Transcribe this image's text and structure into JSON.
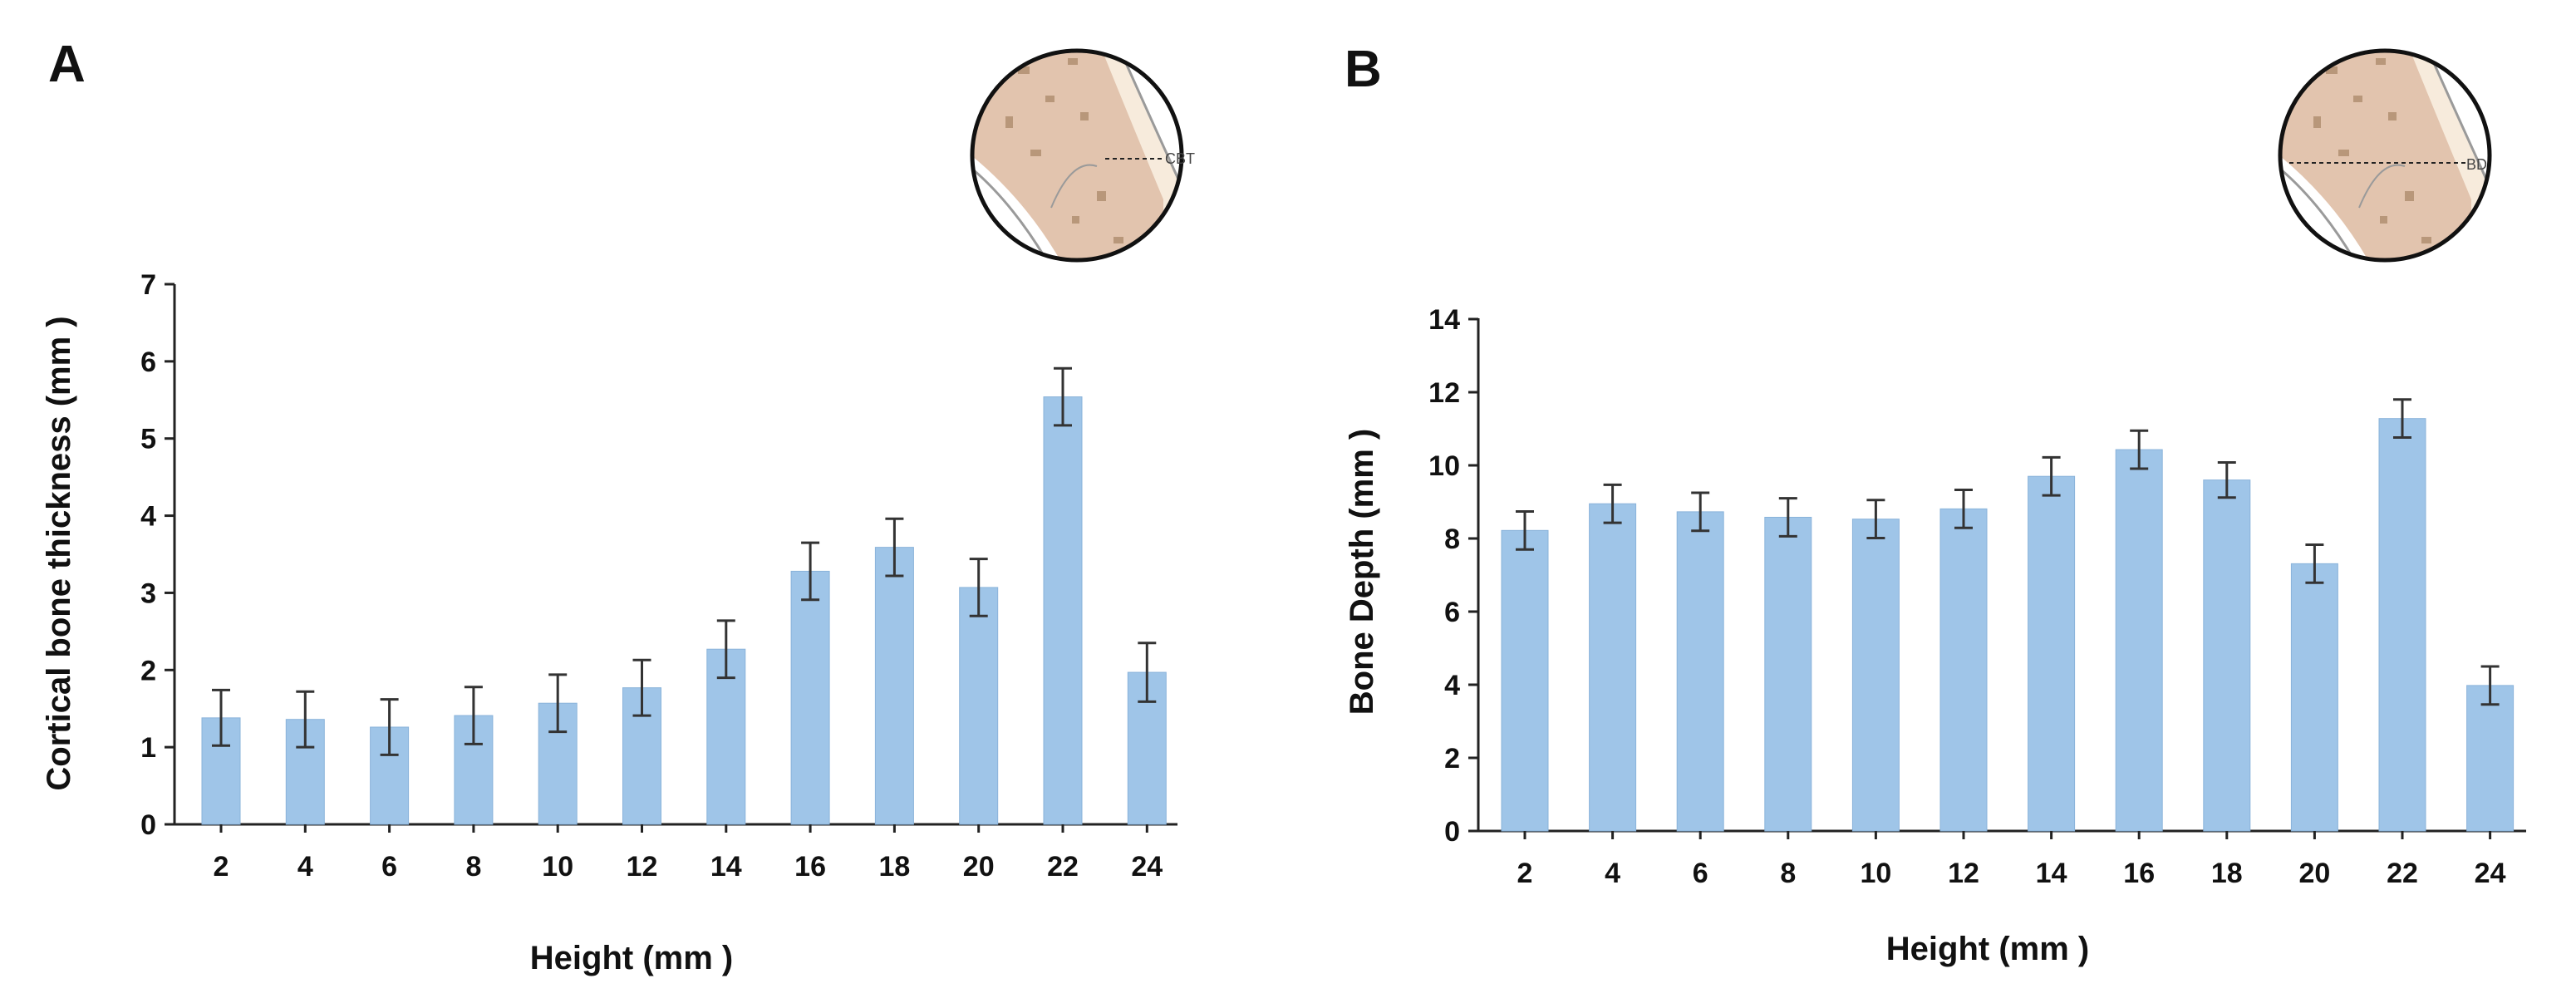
{
  "panels": {
    "a": {
      "letter": "A",
      "inset_label": "CBT"
    },
    "b": {
      "letter": "B",
      "inset_label": "BD"
    }
  },
  "colors": {
    "bar": "#9fc5e8",
    "axis": "#222222",
    "error_bar": "#333333"
  },
  "chart_data": [
    {
      "type": "bar",
      "title": "",
      "xlabel": "Height (mm )",
      "ylabel": "Cortical bone thickness (mm )",
      "categories": [
        "2",
        "4",
        "6",
        "8",
        "10",
        "12",
        "14",
        "16",
        "18",
        "20",
        "22",
        "24"
      ],
      "values": [
        1.38,
        1.36,
        1.26,
        1.41,
        1.57,
        1.77,
        2.27,
        3.28,
        3.59,
        3.07,
        5.54,
        1.97
      ],
      "errors": [
        0.36,
        0.36,
        0.36,
        0.37,
        0.37,
        0.36,
        0.37,
        0.37,
        0.37,
        0.37,
        0.37,
        0.38
      ],
      "ylim": [
        0,
        7
      ],
      "yticks": [
        0,
        1,
        2,
        3,
        4,
        5,
        6,
        7
      ],
      "grid": false
    },
    {
      "type": "bar",
      "title": "",
      "xlabel": "Height (mm )",
      "ylabel": "Bone Depth (mm )",
      "categories": [
        "2",
        "4",
        "6",
        "8",
        "10",
        "12",
        "14",
        "16",
        "18",
        "20",
        "22",
        "24"
      ],
      "values": [
        8.22,
        8.95,
        8.73,
        8.58,
        8.53,
        8.81,
        9.7,
        10.43,
        9.6,
        7.31,
        11.28,
        3.98
      ],
      "errors": [
        0.52,
        0.52,
        0.52,
        0.52,
        0.52,
        0.52,
        0.52,
        0.52,
        0.48,
        0.52,
        0.52,
        0.52
      ],
      "ylim": [
        0,
        14
      ],
      "yticks": [
        0,
        2,
        4,
        6,
        8,
        10,
        12,
        14
      ],
      "grid": false
    }
  ]
}
